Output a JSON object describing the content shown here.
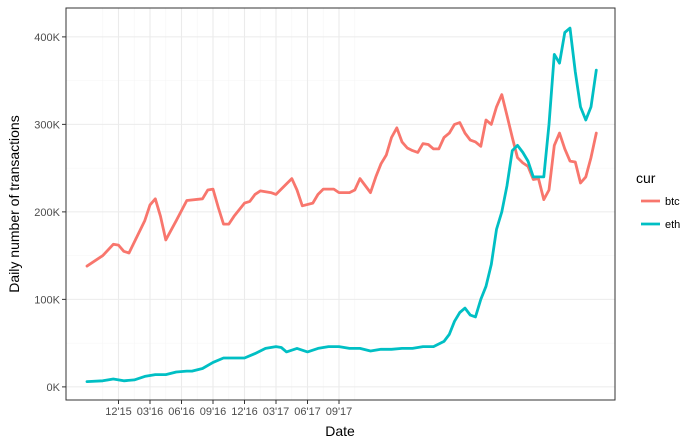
{
  "chart_data": {
    "type": "line",
    "xlabel": "Date",
    "ylabel": "Daily number of transactions",
    "x_tick_labels": [
      "12'15",
      "03'16",
      "06'16",
      "09'16",
      "12'16",
      "03'17",
      "06'17",
      "09'17"
    ],
    "y_tick_labels": [
      "0K",
      "100K",
      "200K",
      "300K",
      "400K"
    ],
    "ylim": [
      -15000,
      433000
    ],
    "grid": true,
    "legend": {
      "title": "cur",
      "position": "right"
    },
    "series": [
      {
        "name": "btc",
        "color": "#F8766D",
        "points": [
          [
            0,
            138000
          ],
          [
            1.5,
            150000
          ],
          [
            2.5,
            163000
          ],
          [
            3,
            162000
          ],
          [
            3.5,
            155000
          ],
          [
            4,
            153000
          ],
          [
            5.5,
            190000
          ],
          [
            6,
            208000
          ],
          [
            6.5,
            215000
          ],
          [
            7,
            195000
          ],
          [
            7.5,
            168000
          ],
          [
            8.5,
            190000
          ],
          [
            9.5,
            213000
          ],
          [
            11,
            215000
          ],
          [
            11.5,
            225000
          ],
          [
            12,
            226000
          ],
          [
            12.5,
            205000
          ],
          [
            13,
            186000
          ],
          [
            13.5,
            186000
          ],
          [
            14,
            195000
          ],
          [
            15,
            210000
          ],
          [
            15.5,
            212000
          ],
          [
            16,
            220000
          ],
          [
            16.5,
            224000
          ],
          [
            17.5,
            222000
          ],
          [
            18,
            220000
          ],
          [
            19,
            232000
          ],
          [
            19.5,
            238000
          ],
          [
            20,
            225000
          ],
          [
            20.5,
            207000
          ],
          [
            21.5,
            210000
          ],
          [
            22,
            220000
          ],
          [
            22.5,
            226000
          ],
          [
            23.5,
            226000
          ],
          [
            24,
            222000
          ],
          [
            25,
            222000
          ],
          [
            25.5,
            225000
          ],
          [
            26,
            238000
          ],
          [
            27,
            222000
          ],
          [
            27.5,
            240000
          ],
          [
            28,
            255000
          ],
          [
            28.5,
            265000
          ],
          [
            29,
            285000
          ],
          [
            29.5,
            296000
          ],
          [
            30,
            280000
          ],
          [
            30.5,
            273000
          ],
          [
            31,
            270000
          ],
          [
            31.5,
            268000
          ],
          [
            32,
            278000
          ],
          [
            32.5,
            277000
          ],
          [
            33,
            272000
          ],
          [
            33.5,
            272000
          ],
          [
            34,
            285000
          ],
          [
            34.5,
            290000
          ],
          [
            35,
            300000
          ],
          [
            35.5,
            302000
          ],
          [
            36,
            290000
          ],
          [
            36.5,
            282000
          ],
          [
            37,
            280000
          ],
          [
            37.5,
            275000
          ],
          [
            38,
            305000
          ],
          [
            38.5,
            300000
          ],
          [
            39,
            320000
          ],
          [
            39.5,
            334000
          ],
          [
            40,
            310000
          ],
          [
            40.5,
            285000
          ],
          [
            41,
            262000
          ],
          [
            41.5,
            256000
          ],
          [
            42,
            252000
          ],
          [
            42.5,
            237000
          ],
          [
            43,
            238000
          ],
          [
            43.5,
            214000
          ],
          [
            44,
            225000
          ],
          [
            44.5,
            276000
          ],
          [
            45,
            290000
          ],
          [
            45.5,
            272000
          ],
          [
            46,
            258000
          ],
          [
            46.5,
            257000
          ],
          [
            47,
            233000
          ],
          [
            47.5,
            240000
          ],
          [
            48,
            262000
          ],
          [
            48.5,
            290000
          ]
        ]
      },
      {
        "name": "eth",
        "color": "#00BFC4",
        "points": [
          [
            0,
            6000
          ],
          [
            1.5,
            7000
          ],
          [
            2.5,
            9000
          ],
          [
            3.5,
            7000
          ],
          [
            4.5,
            8000
          ],
          [
            5.5,
            12000
          ],
          [
            6.5,
            14000
          ],
          [
            7.5,
            14000
          ],
          [
            8.5,
            17000
          ],
          [
            9.5,
            18000
          ],
          [
            10,
            18000
          ],
          [
            11,
            21000
          ],
          [
            12,
            28000
          ],
          [
            13,
            33000
          ],
          [
            14,
            33000
          ],
          [
            15,
            33000
          ],
          [
            16,
            38000
          ],
          [
            17,
            44000
          ],
          [
            18,
            46000
          ],
          [
            18.5,
            45000
          ],
          [
            19,
            40000
          ],
          [
            20,
            44000
          ],
          [
            21,
            40000
          ],
          [
            22,
            44000
          ],
          [
            23,
            46000
          ],
          [
            24,
            46000
          ],
          [
            25,
            44000
          ],
          [
            26,
            44000
          ],
          [
            27,
            41000
          ],
          [
            28,
            43000
          ],
          [
            29,
            43000
          ],
          [
            30,
            44000
          ],
          [
            31,
            44000
          ],
          [
            32,
            46000
          ],
          [
            33,
            46000
          ],
          [
            34,
            52000
          ],
          [
            34.5,
            60000
          ],
          [
            35,
            75000
          ],
          [
            35.5,
            85000
          ],
          [
            36,
            90000
          ],
          [
            36.5,
            82000
          ],
          [
            37,
            80000
          ],
          [
            37.5,
            100000
          ],
          [
            38,
            115000
          ],
          [
            38.5,
            140000
          ],
          [
            39,
            180000
          ],
          [
            39.5,
            200000
          ],
          [
            40,
            230000
          ],
          [
            40.5,
            270000
          ],
          [
            41,
            276000
          ],
          [
            41.5,
            268000
          ],
          [
            42,
            258000
          ],
          [
            42.5,
            240000
          ],
          [
            43,
            240000
          ],
          [
            43.5,
            240000
          ],
          [
            44,
            300000
          ],
          [
            44.5,
            380000
          ],
          [
            45,
            370000
          ],
          [
            45.5,
            405000
          ],
          [
            46,
            410000
          ],
          [
            46.5,
            360000
          ],
          [
            47,
            320000
          ],
          [
            47.5,
            305000
          ],
          [
            48,
            320000
          ],
          [
            48.5,
            362000
          ]
        ]
      }
    ]
  }
}
